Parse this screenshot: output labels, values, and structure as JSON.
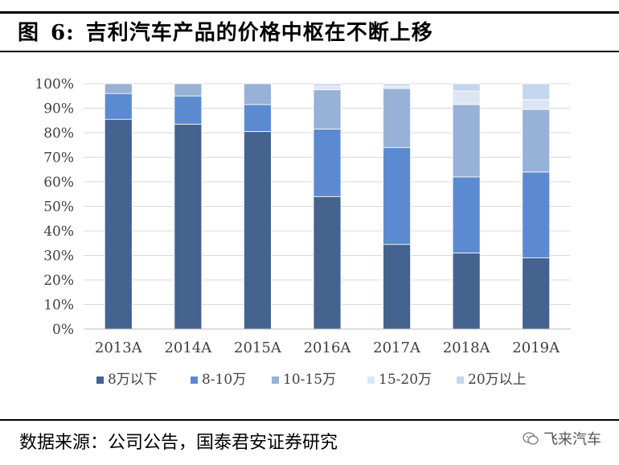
{
  "figure": {
    "label": "图",
    "number": "6:",
    "title": "吉利汽车产品的价格中枢在不断上移"
  },
  "source": "数据来源：公司公告，国泰君安证券研究",
  "watermark": "飞来汽车",
  "chart_data": {
    "type": "bar",
    "stacked": true,
    "percent": true,
    "categories": [
      "2013A",
      "2014A",
      "2015A",
      "2016A",
      "2017A",
      "2018A",
      "2019A"
    ],
    "series": [
      {
        "name": "8万以下",
        "color": "#44638F",
        "values": [
          85.5,
          83.5,
          80.5,
          54,
          34.5,
          31,
          29
        ]
      },
      {
        "name": "8-10万",
        "color": "#5B8AD1",
        "values": [
          10.5,
          11.5,
          11,
          27.5,
          39.5,
          31,
          35
        ]
      },
      {
        "name": "10-15万",
        "color": "#98B1D6",
        "values": [
          4,
          5,
          8.5,
          16,
          24,
          29.5,
          25.5
        ]
      },
      {
        "name": "15-20万",
        "color": "#DCE6F3",
        "values": [
          0,
          0,
          0,
          1.5,
          1,
          5.5,
          4
        ]
      },
      {
        "name": "20万以上",
        "color": "#C5D7EE",
        "values": [
          0,
          0,
          0,
          1,
          1,
          3,
          6.5
        ]
      }
    ],
    "yticks": [
      "0%",
      "10%",
      "20%",
      "30%",
      "40%",
      "50%",
      "60%",
      "70%",
      "80%",
      "90%",
      "100%"
    ],
    "ylim": [
      0,
      100
    ],
    "grid": true,
    "legend_position": "bottom"
  }
}
